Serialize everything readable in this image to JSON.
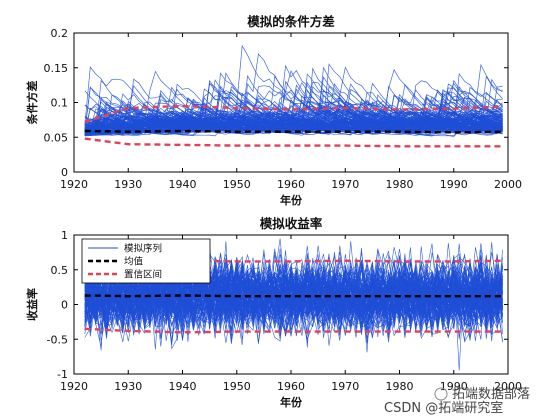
{
  "chart_data": [
    {
      "type": "line",
      "title": "模拟的条件方差",
      "xlabel": "年份",
      "ylabel": "条件方差",
      "xlim": [
        1920,
        2000
      ],
      "ylim": [
        0,
        0.2
      ],
      "xticks": [
        "1920",
        "1930",
        "1940",
        "1950",
        "1960",
        "1970",
        "1980",
        "1990",
        "2000"
      ],
      "yticks": [
        "0",
        "0.05",
        "0.1",
        "0.15",
        "0.2"
      ],
      "grid": false,
      "series": [
        {
          "name": "模拟序列",
          "color": "#1f4fd6",
          "style": "solid",
          "num_paths": 1000,
          "description_range": {
            "typical_min": 0.035,
            "typical_max": 0.18
          }
        },
        {
          "name": "均值",
          "color": "#000000",
          "style": "dashed",
          "x": [
            1922,
            1930,
            1940,
            1950,
            1960,
            1970,
            1980,
            1990,
            1999
          ],
          "values": [
            0.059,
            0.058,
            0.059,
            0.058,
            0.058,
            0.058,
            0.058,
            0.057,
            0.058
          ]
        },
        {
          "name": "置信区间",
          "color": "#e0425c",
          "style": "dashed",
          "x": [
            1922,
            1930,
            1940,
            1950,
            1960,
            1970,
            1980,
            1990,
            1999
          ],
          "upper": [
            0.072,
            0.092,
            0.095,
            0.092,
            0.09,
            0.092,
            0.09,
            0.091,
            0.094
          ],
          "lower": [
            0.048,
            0.04,
            0.039,
            0.038,
            0.038,
            0.038,
            0.037,
            0.037,
            0.037
          ]
        }
      ]
    },
    {
      "type": "line",
      "title": "模拟收益率",
      "xlabel": "年份",
      "ylabel": "收益率",
      "xlim": [
        1920,
        2000
      ],
      "ylim": [
        -1,
        1
      ],
      "xticks": [
        "1920",
        "1930",
        "1940",
        "1950",
        "1960",
        "1970",
        "1980",
        "1990",
        "2000"
      ],
      "yticks": [
        "-1",
        "-0.5",
        "0",
        "0.5",
        "1"
      ],
      "grid": false,
      "legend": "top-left",
      "series": [
        {
          "name": "模拟序列",
          "color": "#1f4fd6",
          "style": "solid",
          "num_paths": 1000,
          "description_range": {
            "typical_min": -0.8,
            "typical_max": 0.8
          }
        },
        {
          "name": "均值",
          "color": "#000000",
          "style": "dashed",
          "x": [
            1922,
            1930,
            1940,
            1950,
            1960,
            1970,
            1980,
            1990,
            1999
          ],
          "values": [
            0.13,
            0.12,
            0.13,
            0.12,
            0.12,
            0.12,
            0.12,
            0.12,
            0.12
          ]
        },
        {
          "name": "置信区间",
          "color": "#e0425c",
          "style": "dashed",
          "x": [
            1922,
            1930,
            1940,
            1950,
            1960,
            1970,
            1980,
            1990,
            1999
          ],
          "upper": [
            0.58,
            0.62,
            0.63,
            0.62,
            0.62,
            0.63,
            0.62,
            0.62,
            0.63
          ],
          "lower": [
            -0.35,
            -0.38,
            -0.4,
            -0.39,
            -0.39,
            -0.39,
            -0.39,
            -0.39,
            -0.39
          ]
        }
      ]
    }
  ],
  "watermark": {
    "line1": "拓端数据部落",
    "line2": "CSDN @拓端研究室"
  }
}
